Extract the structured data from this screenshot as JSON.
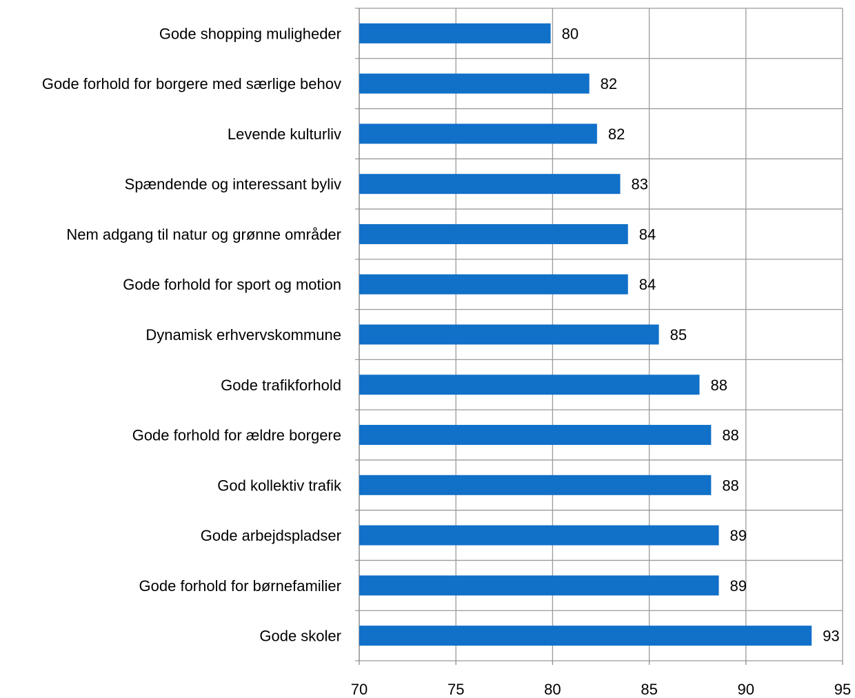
{
  "chart_data": {
    "type": "bar",
    "orientation": "horizontal",
    "title": "",
    "xlabel": "",
    "ylabel": "",
    "xlim": [
      70,
      95
    ],
    "x_ticks": [
      70,
      75,
      80,
      85,
      90,
      95
    ],
    "grid": true,
    "bar_color": "#1170C8",
    "categories": [
      "Gode shopping muligheder",
      "Gode forhold for borgere med særlige behov",
      "Levende kulturliv",
      "Spændende og interessant byliv",
      "Nem adgang til natur og grønne områder",
      "Gode forhold for sport og motion",
      "Dynamisk erhvervskommune",
      "Gode trafikforhold",
      "Gode forhold for ældre borgere",
      "God kollektiv trafik",
      "Gode arbejdspladser",
      "Gode forhold for børnefamilier",
      "Gode skoler"
    ],
    "values": [
      79.9,
      81.9,
      82.3,
      83.5,
      83.9,
      83.9,
      85.5,
      87.6,
      88.2,
      88.2,
      88.6,
      88.6,
      93.4
    ],
    "data_labels": [
      "80",
      "82",
      "82",
      "83",
      "84",
      "84",
      "85",
      "88",
      "88",
      "88",
      "89",
      "89",
      "93"
    ]
  }
}
